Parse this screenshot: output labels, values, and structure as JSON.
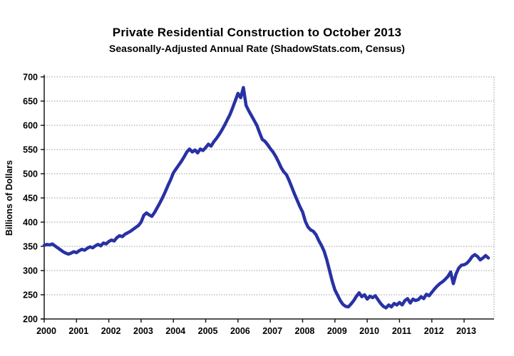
{
  "chart": {
    "title": "Private Residential Construction to October 2013",
    "subtitle": "Seasonally-Adjusted Annual Rate (ShadowStats.com, Census)",
    "y_axis_title": "Billions of Dollars"
  },
  "chart_data": {
    "type": "line",
    "title": "Private Residential Construction to October 2013",
    "subtitle": "Seasonally-Adjusted Annual Rate (ShadowStats.com, Census)",
    "xlabel": "",
    "ylabel": "Billions of Dollars",
    "ylim": [
      200,
      700
    ],
    "ytick_interval": 50,
    "ytick_labels": [
      "700",
      "650",
      "600",
      "550",
      "500",
      "450",
      "400",
      "350",
      "300",
      "250",
      "200"
    ],
    "xtick_labels": [
      "2000",
      "2001",
      "2002",
      "2003",
      "2004",
      "2005",
      "2006",
      "2007",
      "2008",
      "2009",
      "2010",
      "2011",
      "2012",
      "2013"
    ],
    "x_start_month": "2000-01",
    "x_end_month": "2013-10",
    "frequency": "monthly",
    "grid": "horizontal dotted gridlines, dotted right and top plot border",
    "legend": "none",
    "line_color": "#2832A4",
    "axis_color": "#1a1a1a",
    "gridline_color": "#999999",
    "series": [
      {
        "name": "Private Residential Construction (Billions of Dollars, SAAR)",
        "start": "2000-01",
        "values": [
          352,
          354,
          353,
          355,
          351,
          347,
          343,
          339,
          336,
          334,
          336,
          339,
          337,
          341,
          344,
          342,
          346,
          349,
          347,
          351,
          354,
          351,
          357,
          355,
          360,
          363,
          361,
          368,
          372,
          370,
          375,
          378,
          381,
          385,
          389,
          393,
          400,
          414,
          419,
          415,
          412,
          420,
          430,
          440,
          451,
          463,
          476,
          488,
          502,
          510,
          518,
          526,
          535,
          545,
          551,
          545,
          549,
          543,
          551,
          548,
          554,
          561,
          557,
          566,
          573,
          581,
          590,
          600,
          611,
          622,
          636,
          651,
          666,
          657,
          678,
          641,
          630,
          620,
          610,
          600,
          585,
          571,
          567,
          560,
          552,
          545,
          536,
          525,
          513,
          504,
          498,
          486,
          472,
          458,
          445,
          432,
          421,
          402,
          390,
          384,
          381,
          374,
          362,
          352,
          340,
          322,
          300,
          278,
          260,
          249,
          238,
          230,
          226,
          225,
          231,
          238,
          247,
          254,
          246,
          250,
          241,
          247,
          244,
          248,
          240,
          232,
          226,
          223,
          229,
          225,
          232,
          229,
          234,
          229,
          238,
          242,
          233,
          241,
          238,
          240,
          246,
          242,
          251,
          248,
          255,
          262,
          268,
          273,
          277,
          282,
          288,
          297,
          273,
          293,
          305,
          311,
          312,
          315,
          321,
          329,
          333,
          329,
          322,
          326,
          331,
          326
        ]
      }
    ]
  }
}
